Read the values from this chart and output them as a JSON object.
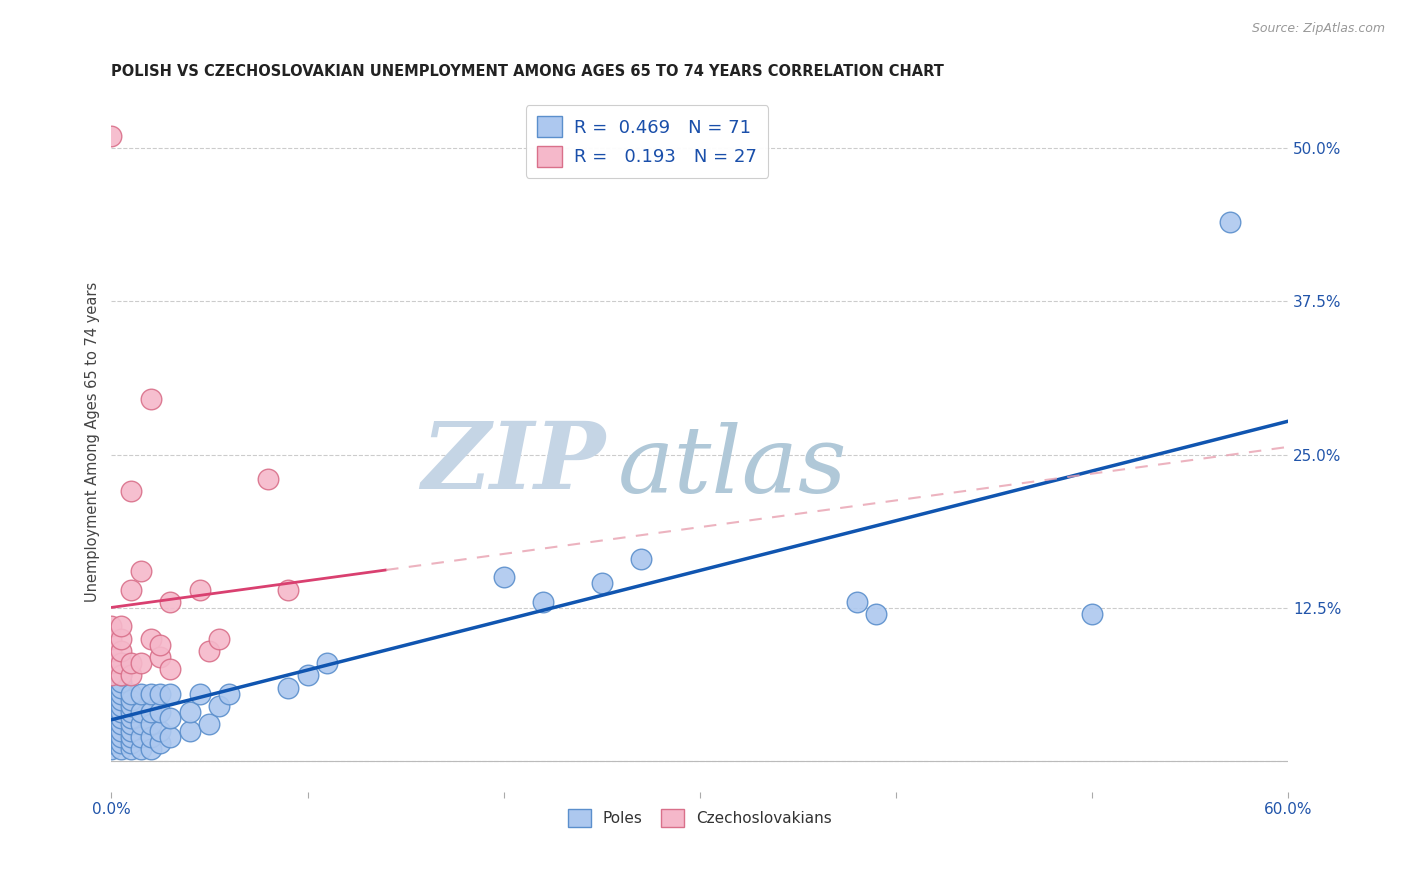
{
  "title": "POLISH VS CZECHOSLOVAKIAN UNEMPLOYMENT AMONG AGES 65 TO 74 YEARS CORRELATION CHART",
  "source": "Source: ZipAtlas.com",
  "ylabel": "Unemployment Among Ages 65 to 74 years",
  "xlim": [
    0.0,
    0.6
  ],
  "ylim": [
    -0.025,
    0.545
  ],
  "xticks": [
    0.0,
    0.1,
    0.2,
    0.3,
    0.4,
    0.5,
    0.6
  ],
  "xticklabels": [
    "0.0%",
    "",
    "",
    "",
    "",
    "",
    "60.0%"
  ],
  "right_yticks": [
    0.0,
    0.125,
    0.25,
    0.375,
    0.5
  ],
  "right_yticklabels": [
    "",
    "12.5%",
    "25.0%",
    "37.5%",
    "50.0%"
  ],
  "poles_color": "#adc8ef",
  "czech_color": "#f5b8ca",
  "poles_edge": "#5b8fcc",
  "czech_edge": "#d9708a",
  "trend_poles_color": "#1055b0",
  "trend_czech_color": "#d94070",
  "trend_czech_dash_color": "#e8a0b0",
  "watermark_zip": "ZIP",
  "watermark_atlas": "atlas",
  "watermark_color_zip": "#c5d5e5",
  "watermark_color_atlas": "#b0c8d8",
  "poles_x": [
    0.0,
    0.0,
    0.0,
    0.0,
    0.0,
    0.0,
    0.0,
    0.0,
    0.0,
    0.0,
    0.0,
    0.0,
    0.0,
    0.0,
    0.0,
    0.005,
    0.005,
    0.005,
    0.005,
    0.005,
    0.005,
    0.005,
    0.005,
    0.005,
    0.005,
    0.005,
    0.005,
    0.005,
    0.005,
    0.005,
    0.01,
    0.01,
    0.01,
    0.01,
    0.01,
    0.01,
    0.01,
    0.01,
    0.01,
    0.01,
    0.015,
    0.015,
    0.015,
    0.015,
    0.015,
    0.02,
    0.02,
    0.02,
    0.02,
    0.02,
    0.025,
    0.025,
    0.025,
    0.025,
    0.03,
    0.03,
    0.03,
    0.04,
    0.04,
    0.045,
    0.05,
    0.055,
    0.06,
    0.09,
    0.1,
    0.11,
    0.2,
    0.22,
    0.25,
    0.27,
    0.38,
    0.39,
    0.5,
    0.57
  ],
  "poles_y": [
    0.01,
    0.015,
    0.02,
    0.025,
    0.03,
    0.035,
    0.04,
    0.045,
    0.05,
    0.055,
    0.06,
    0.065,
    0.07,
    0.075,
    0.08,
    0.01,
    0.015,
    0.02,
    0.025,
    0.03,
    0.035,
    0.04,
    0.045,
    0.05,
    0.055,
    0.06,
    0.065,
    0.07,
    0.075,
    0.08,
    0.01,
    0.015,
    0.02,
    0.025,
    0.03,
    0.035,
    0.04,
    0.045,
    0.05,
    0.055,
    0.01,
    0.02,
    0.03,
    0.04,
    0.055,
    0.01,
    0.02,
    0.03,
    0.04,
    0.055,
    0.015,
    0.025,
    0.04,
    0.055,
    0.02,
    0.035,
    0.055,
    0.025,
    0.04,
    0.055,
    0.03,
    0.045,
    0.055,
    0.06,
    0.07,
    0.08,
    0.15,
    0.13,
    0.145,
    0.165,
    0.13,
    0.12,
    0.12,
    0.44
  ],
  "czech_x": [
    0.0,
    0.0,
    0.0,
    0.0,
    0.0,
    0.0,
    0.005,
    0.005,
    0.005,
    0.005,
    0.005,
    0.01,
    0.01,
    0.01,
    0.01,
    0.015,
    0.015,
    0.02,
    0.02,
    0.025,
    0.025,
    0.03,
    0.03,
    0.045,
    0.05,
    0.055,
    0.08,
    0.09
  ],
  "czech_y": [
    0.07,
    0.08,
    0.09,
    0.1,
    0.11,
    0.51,
    0.07,
    0.08,
    0.09,
    0.1,
    0.11,
    0.07,
    0.08,
    0.14,
    0.22,
    0.08,
    0.155,
    0.1,
    0.295,
    0.085,
    0.095,
    0.075,
    0.13,
    0.14,
    0.09,
    0.1,
    0.23,
    0.14
  ]
}
